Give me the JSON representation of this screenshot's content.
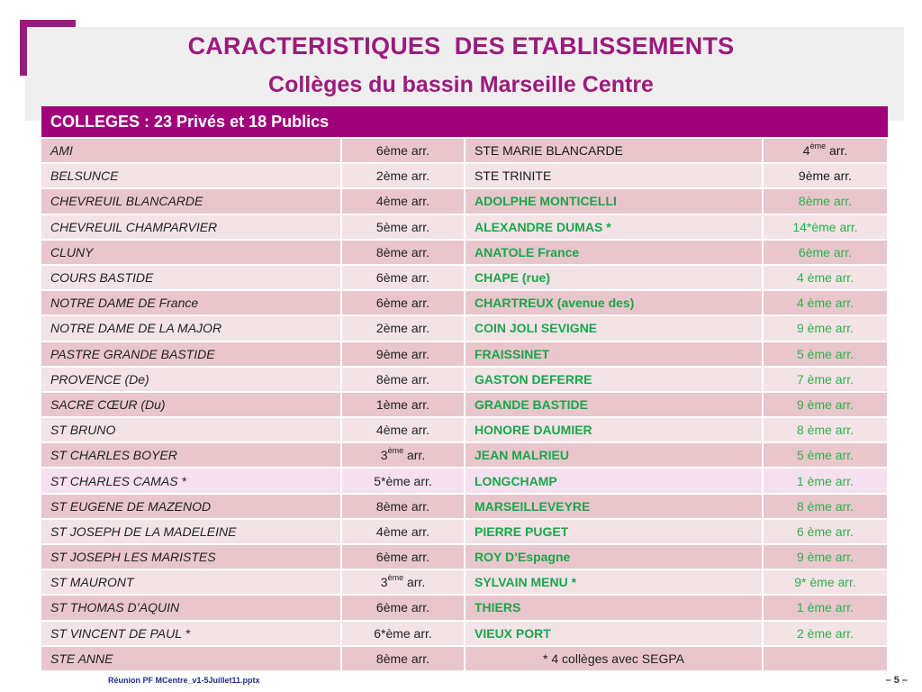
{
  "slide": {
    "title": "CARACTERISTIQUES  DES ETABLISSEMENTS",
    "subtitle": "Collèges du bassin Marseille Centre",
    "footer_left": "Réunion PF MCentre_v1-5Juillet11.pptx",
    "footer_right": "– 5 –"
  },
  "colors": {
    "accent": "#9b1b7c",
    "header_bg": "#a0007a",
    "row_dark": "#e8c6cc",
    "row_light": "#f3e3e6",
    "public_green": "#19a64a"
  },
  "table": {
    "heading": "COLLEGES : 23 Privés et 18 Publics",
    "rows": [
      {
        "private_name": "AMI",
        "private_arr": "6ème arr.",
        "public_name": "STE MARIE BLANCARDE",
        "public_arr": "4ème arr.",
        "public_style": "plain"
      },
      {
        "private_name": "BELSUNCE",
        "private_arr": "2ème arr.",
        "public_name": "STE TRINITE",
        "public_arr": "9ème arr.",
        "public_style": "plain"
      },
      {
        "private_name": "CHEVREUIL BLANCARDE",
        "private_arr": "4ème arr.",
        "public_name": "ADOLPHE  MONTICELLI",
        "public_arr": "8ème arr.",
        "public_style": "green"
      },
      {
        "private_name": "CHEVREUIL CHAMPARVIER",
        "private_arr": "5ème arr.",
        "public_name": "ALEXANDRE  DUMAS *",
        "public_arr": "14*ème arr.",
        "public_style": "green"
      },
      {
        "private_name": "CLUNY",
        "private_arr": "8ème arr.",
        "public_name": "ANATOLE  France",
        "public_arr": "6ème arr.",
        "public_style": "green"
      },
      {
        "private_name": "COURS BASTIDE",
        "private_arr": "6ème arr.",
        "public_name": "CHAPE (rue)",
        "public_arr": "4 ème arr.",
        "public_style": "green"
      },
      {
        "private_name": "NOTRE DAME DE France",
        "private_arr": "6ème arr.",
        "public_name": "CHARTREUX (avenue des)",
        "public_arr": "4 ème arr.",
        "public_style": "green"
      },
      {
        "private_name": "NOTRE DAME DE LA MAJOR",
        "private_arr": "2ème arr.",
        "public_name": "COIN JOLI SEVIGNE",
        "public_arr": "9 ème arr.",
        "public_style": "green"
      },
      {
        "private_name": "PASTRE GRANDE BASTIDE",
        "private_arr": "9ème arr.",
        "public_name": "FRAISSINET",
        "public_arr": "5 ème arr.",
        "public_style": "green"
      },
      {
        "private_name": "PROVENCE (De)",
        "private_arr": "8ème arr.",
        "public_name": "GASTON DEFERRE",
        "public_arr": "7 ème arr.",
        "public_style": "green"
      },
      {
        "private_name": "SACRE CŒUR (Du)",
        "private_arr": "1ème arr.",
        "public_name": "GRANDE BASTIDE",
        "public_arr": "9 ème arr.",
        "public_style": "green"
      },
      {
        "private_name": "ST BRUNO",
        "private_arr": "4ème arr.",
        "public_name": "HONORE DAUMIER",
        "public_arr": "8 ème arr.",
        "public_style": "green"
      },
      {
        "private_name": "ST CHARLES BOYER",
        "private_arr": "3ème arr.",
        "public_name": "JEAN MALRIEU",
        "public_arr": "5 ème arr.",
        "public_style": "green"
      },
      {
        "private_name": "ST CHARLES CAMAS *",
        "private_arr": "5*ème arr.",
        "public_name": "LONGCHAMP",
        "public_arr": "1 ème arr.",
        "public_style": "green"
      },
      {
        "private_name": "ST EUGENE DE MAZENOD",
        "private_arr": "8ème arr.",
        "public_name": "MARSEILLEVEYRE",
        "public_arr": "8 ème arr.",
        "public_style": "green"
      },
      {
        "private_name": "ST JOSEPH DE LA MADELEINE",
        "private_arr": "4ème arr.",
        "public_name": "PIERRE PUGET",
        "public_arr": "6 ème arr.",
        "public_style": "green"
      },
      {
        "private_name": "ST JOSEPH LES MARISTES",
        "private_arr": "6ème arr.",
        "public_name": "ROY D’Espagne",
        "public_arr": "9 ème arr.",
        "public_style": "green"
      },
      {
        "private_name": "ST MAURONT",
        "private_arr": "3ème arr.",
        "public_name": "SYLVAIN MENU *",
        "public_arr": "9* ème arr.",
        "public_style": "green"
      },
      {
        "private_name": "ST THOMAS D’AQUIN",
        "private_arr": "6ème arr.",
        "public_name": "THIERS",
        "public_arr": "1 ème arr.",
        "public_style": "green"
      },
      {
        "private_name": "ST VINCENT DE PAUL *",
        "private_arr": "6*ème arr.",
        "public_name": "VIEUX PORT",
        "public_arr": "2 ème arr.",
        "public_style": "green"
      },
      {
        "private_name": "STE ANNE",
        "private_arr": "8ème arr.",
        "public_name": "",
        "public_arr": "",
        "note": "* 4 collèges avec SEGPA",
        "public_style": "note"
      }
    ]
  }
}
